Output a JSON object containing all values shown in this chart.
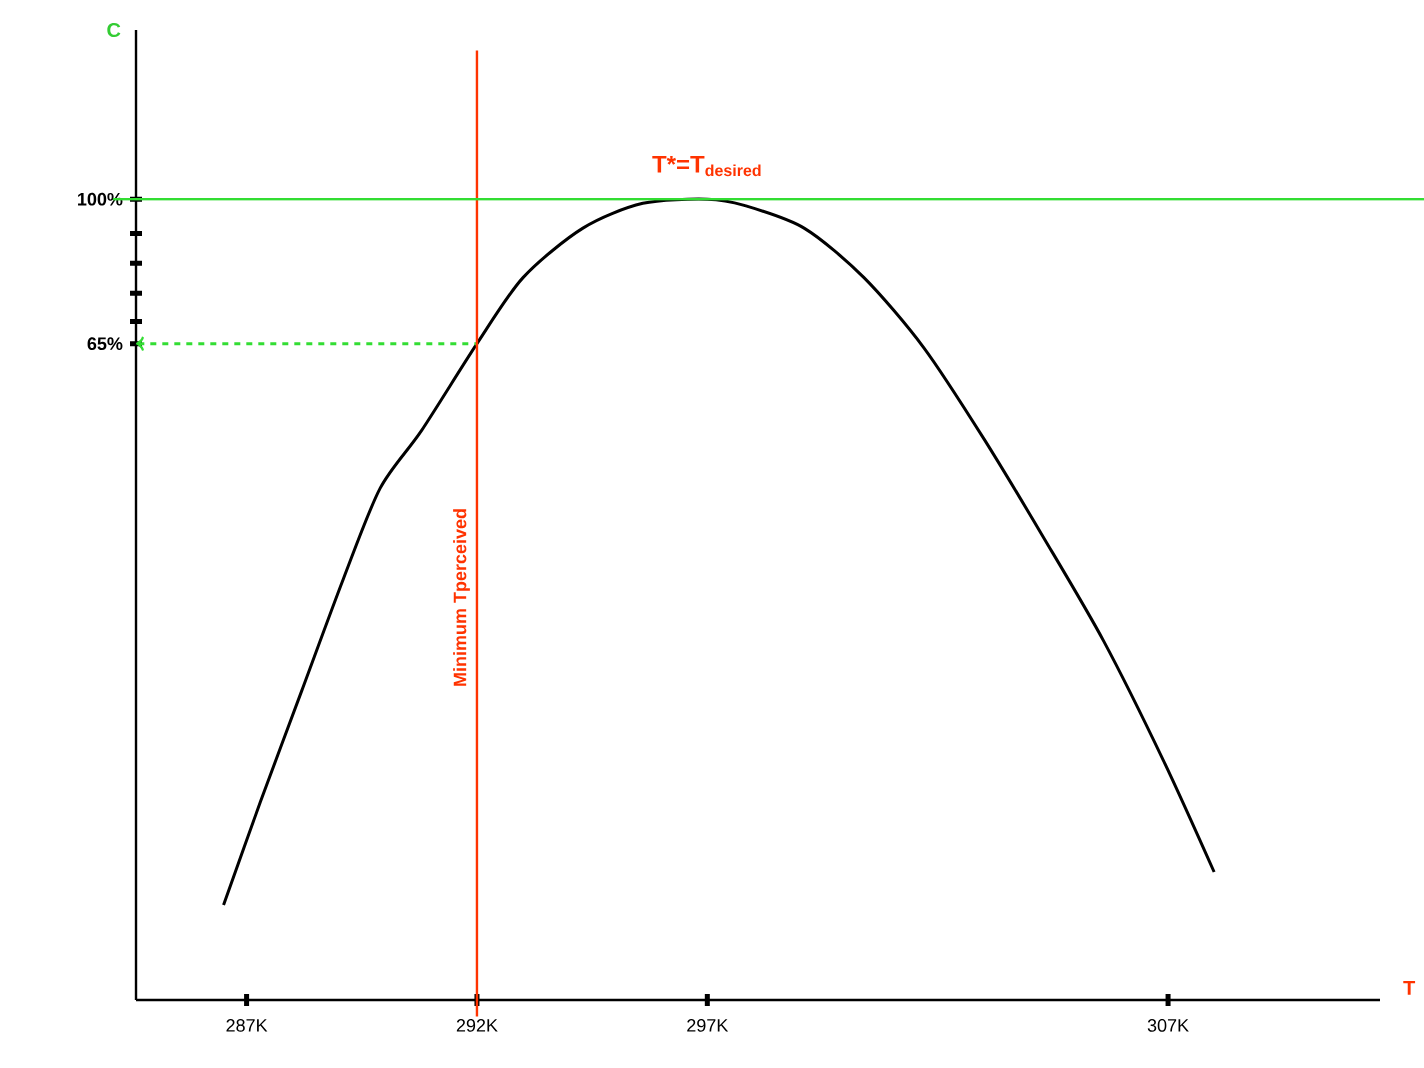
{
  "chart_data": {
    "type": "line",
    "xlabel": "T",
    "ylabel": "C",
    "xlim": [
      284.6,
      311.6
    ],
    "ylim": [
      -94,
      141
    ],
    "xticks": [
      {
        "value": 287,
        "label": "287K"
      },
      {
        "value": 292,
        "label": "292K"
      },
      {
        "value": 297,
        "label": "297K"
      },
      {
        "value": 307,
        "label": "307K"
      }
    ],
    "yticks": [
      {
        "value": 65,
        "label": "65%"
      },
      {
        "value": 70.4,
        "label": null
      },
      {
        "value": 77.2,
        "label": null
      },
      {
        "value": 84.5,
        "label": null
      },
      {
        "value": 91.7,
        "label": null
      },
      {
        "value": 100,
        "label": "100%"
      }
    ],
    "series": [
      {
        "color": "#000000",
        "line_style": "solid",
        "x": [
          286.5,
          287.3,
          288.2,
          289.1,
          289.9,
          290.8,
          292,
          293,
          294.3,
          295.6,
          297,
          297.8,
          299.1,
          300.4,
          301.7,
          303,
          304.3,
          305.6,
          306.9,
          308
        ],
        "values": [
          -71,
          -46,
          -19,
          8,
          30,
          44,
          65,
          81,
          93,
          99,
          100,
          98.5,
          93,
          81,
          64,
          42,
          18,
          -7,
          -36,
          -63
        ]
      },
      {
        "color": "#33dd33",
        "line_style": "dashed",
        "x": [
          284.6,
          292
        ],
        "values": [
          65,
          65
        ]
      }
    ],
    "ref_lines": [
      {
        "axis": "x",
        "value": 292,
        "label": "Minimum Tperceived",
        "color": "#ff3300"
      },
      {
        "axis": "y",
        "value": 100,
        "color": "#33dd33"
      }
    ],
    "annotations": [
      {
        "text": "T*=T$_{desired}$",
        "x": 297,
        "y": 100
      }
    ]
  }
}
